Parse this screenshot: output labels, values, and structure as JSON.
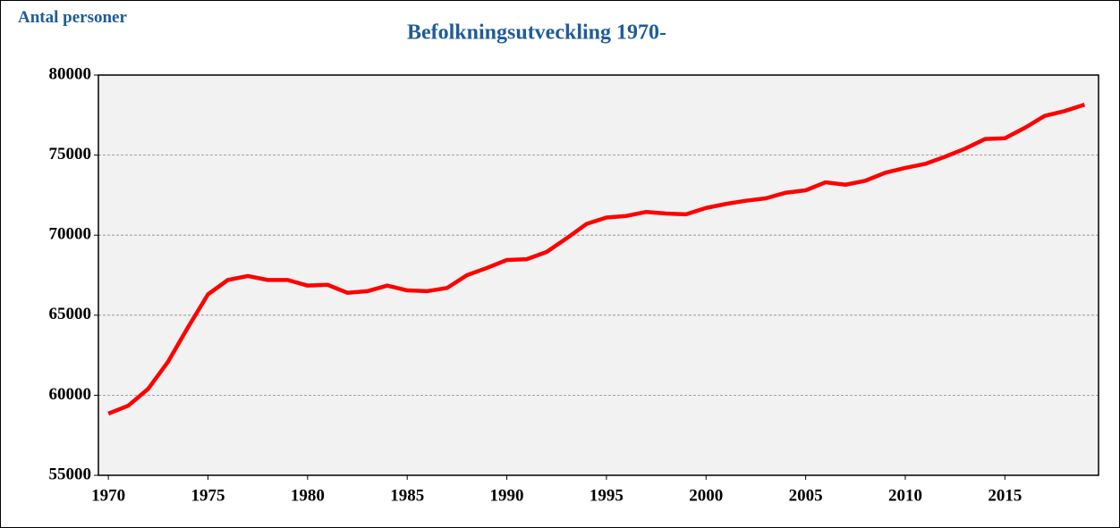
{
  "chart_data": {
    "type": "line",
    "title": "Befolkningsutveckling 1970-",
    "y_label": "Antal personer",
    "x": [
      1970,
      1971,
      1972,
      1973,
      1974,
      1975,
      1976,
      1977,
      1978,
      1979,
      1980,
      1981,
      1982,
      1983,
      1984,
      1985,
      1986,
      1987,
      1988,
      1989,
      1990,
      1991,
      1992,
      1993,
      1994,
      1995,
      1996,
      1997,
      1998,
      1999,
      2000,
      2001,
      2002,
      2003,
      2004,
      2005,
      2006,
      2007,
      2008,
      2009,
      2010,
      2011,
      2012,
      2013,
      2014,
      2015,
      2016,
      2017,
      2018,
      2019
    ],
    "series": [
      {
        "name": "Antal personer",
        "color": "#ff0000",
        "values": [
          58850,
          59350,
          60400,
          62100,
          64250,
          66300,
          67200,
          67450,
          67200,
          67200,
          66850,
          66900,
          66400,
          66500,
          66850,
          66550,
          66500,
          66700,
          67500,
          67950,
          68450,
          68500,
          68950,
          69800,
          70700,
          71100,
          71200,
          71450,
          71350,
          71300,
          71700,
          71950,
          72150,
          72300,
          72650,
          72800,
          73300,
          73150,
          73400,
          73900,
          74200,
          74450,
          74900,
          75400,
          76000,
          76050,
          76700,
          77450,
          77750,
          78150
        ]
      }
    ],
    "xlim": [
      1969.5,
      2019.7
    ],
    "xticks": [
      1970,
      1975,
      1980,
      1985,
      1990,
      1995,
      2000,
      2005,
      2010,
      2015
    ],
    "ylim": [
      55000,
      80000
    ],
    "yticks": [
      55000,
      60000,
      65000,
      70000,
      75000,
      80000
    ],
    "grid": true
  }
}
